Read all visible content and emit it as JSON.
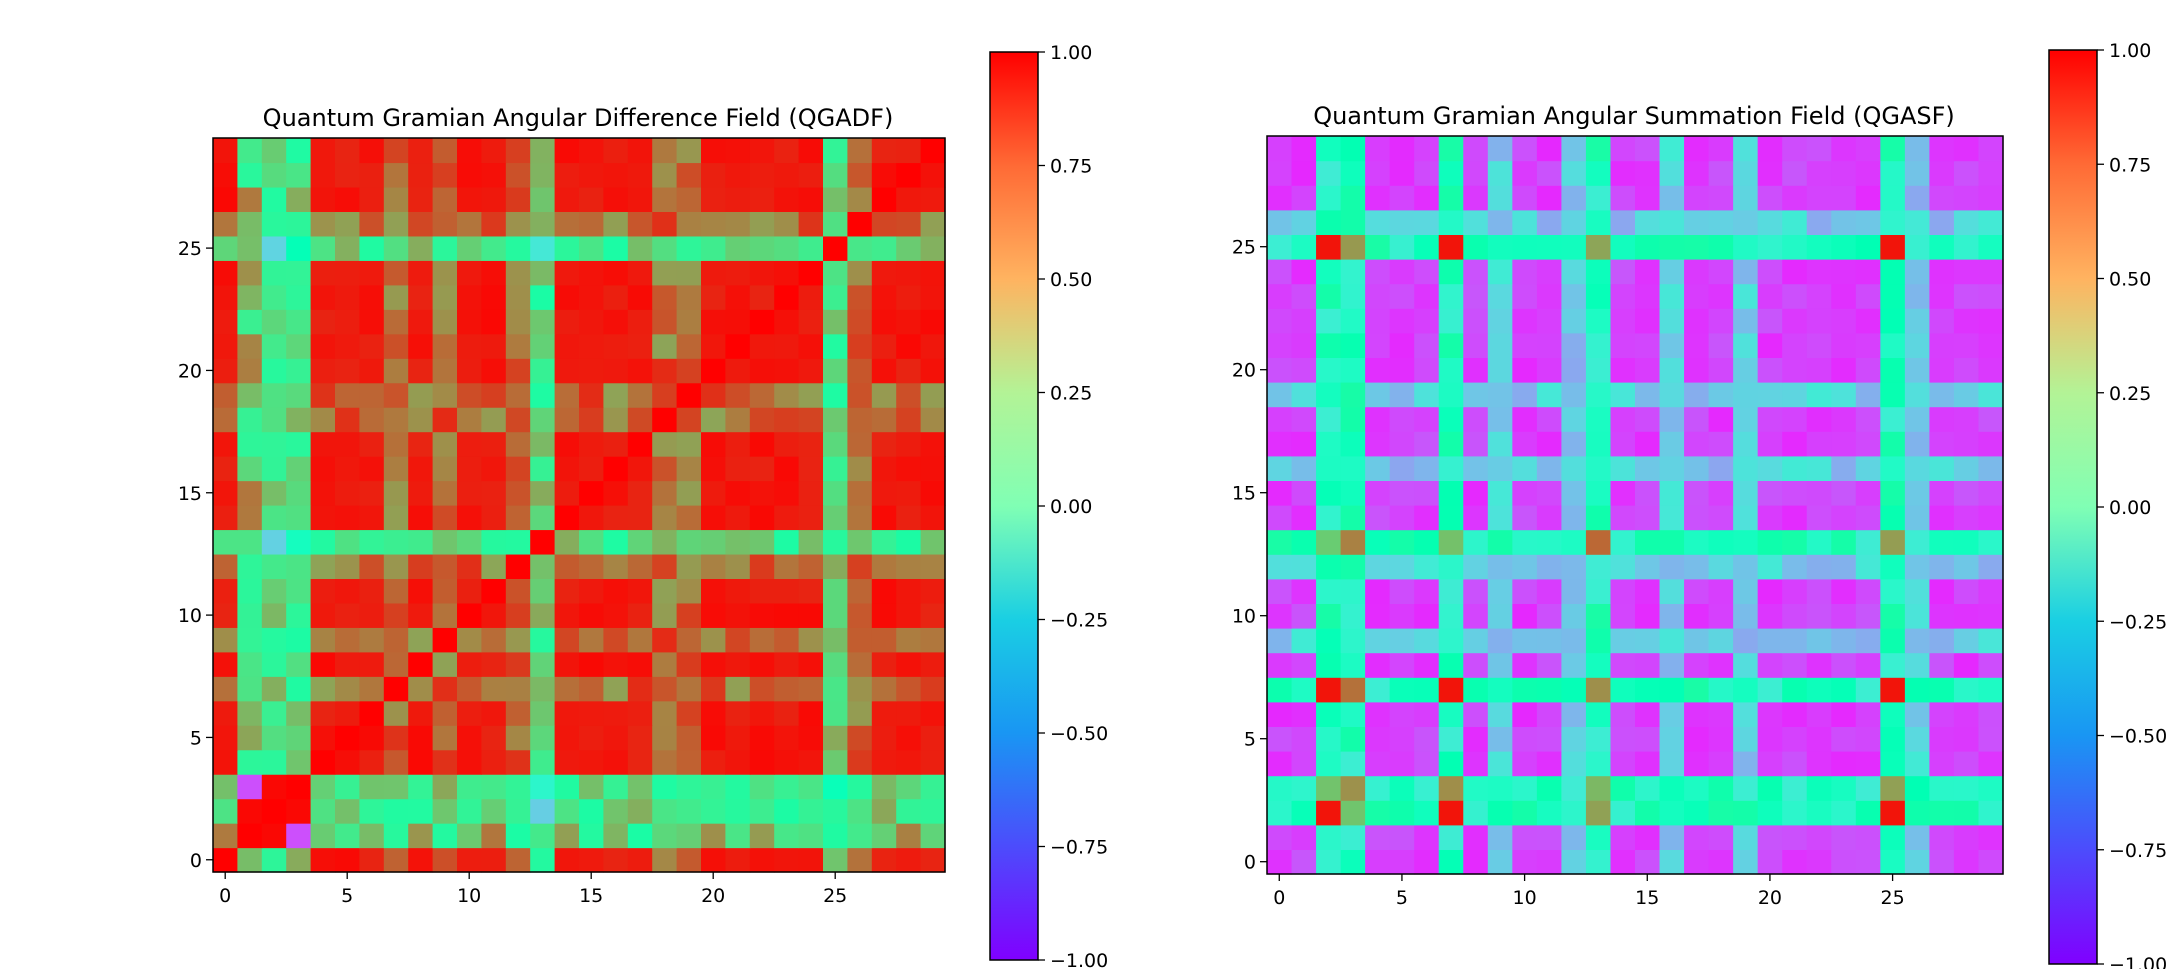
{
  "colors": {
    "colormap": "rainbow",
    "frame": "#000000"
  },
  "chart_data": [
    {
      "type": "heatmap",
      "title": "Quantum Gramian Angular Difference Field (QGADF)",
      "xlabel": "",
      "ylabel": "",
      "grid_size": 30,
      "origin": "lower",
      "x_ticks": [
        0,
        5,
        10,
        15,
        20,
        25
      ],
      "y_ticks": [
        0,
        5,
        10,
        15,
        20,
        25
      ],
      "colorbar": {
        "vmin": -1.0,
        "vmax": 1.0,
        "ticks": [
          "1.00",
          "0.75",
          "0.50",
          "0.25",
          "0.00",
          "−0.25",
          "−0.50",
          "−0.75",
          "−1.00"
        ]
      },
      "pattern": {
        "background_value": 0.98,
        "low_value_rows_cols": [
          1,
          2,
          3
        ],
        "strong_line_indices": [
          2,
          3,
          13,
          25
        ],
        "medium_line_indices": [
          7,
          9,
          12,
          18,
          19,
          26
        ]
      }
    },
    {
      "type": "heatmap",
      "title": "Quantum Gramian Angular Summation Field (QGASF)",
      "xlabel": "",
      "ylabel": "",
      "grid_size": 30,
      "origin": "lower",
      "x_ticks": [
        0,
        5,
        10,
        15,
        20,
        25
      ],
      "y_ticks": [
        0,
        5,
        10,
        15,
        20,
        25
      ],
      "colorbar": {
        "vmin": -1.0,
        "vmax": 1.0,
        "ticks": [
          "1.00",
          "0.75",
          "0.50",
          "0.25",
          "0.00",
          "−0.25",
          "−0.50",
          "−0.75",
          "−1.00"
        ]
      },
      "pattern": {
        "background_value": -0.9,
        "high_value_rows_cols": [
          2,
          7,
          25
        ],
        "strong_line_indices": [
          2,
          3,
          7,
          13,
          25
        ],
        "medium_line_indices": [
          9,
          12,
          16,
          19,
          26
        ]
      }
    }
  ]
}
